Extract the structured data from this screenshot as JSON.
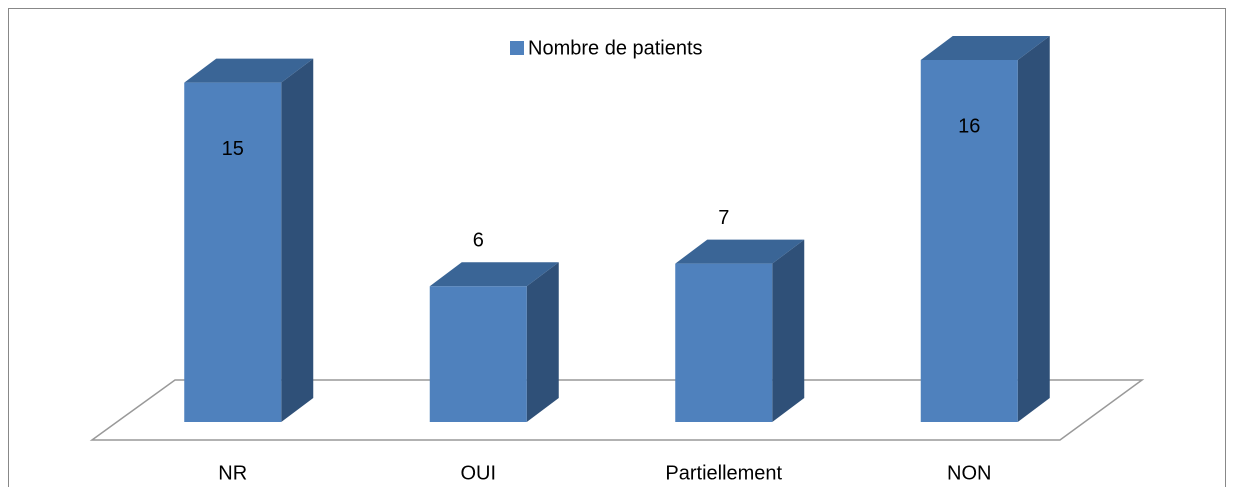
{
  "chart_data": {
    "type": "bar3d",
    "categories": [
      "NR",
      "OUI",
      "Partiellement",
      "NON"
    ],
    "series": [
      {
        "name": "Nombre de patients",
        "color": "#4f81bd",
        "values": [
          15,
          6,
          7,
          16
        ]
      }
    ]
  }
}
